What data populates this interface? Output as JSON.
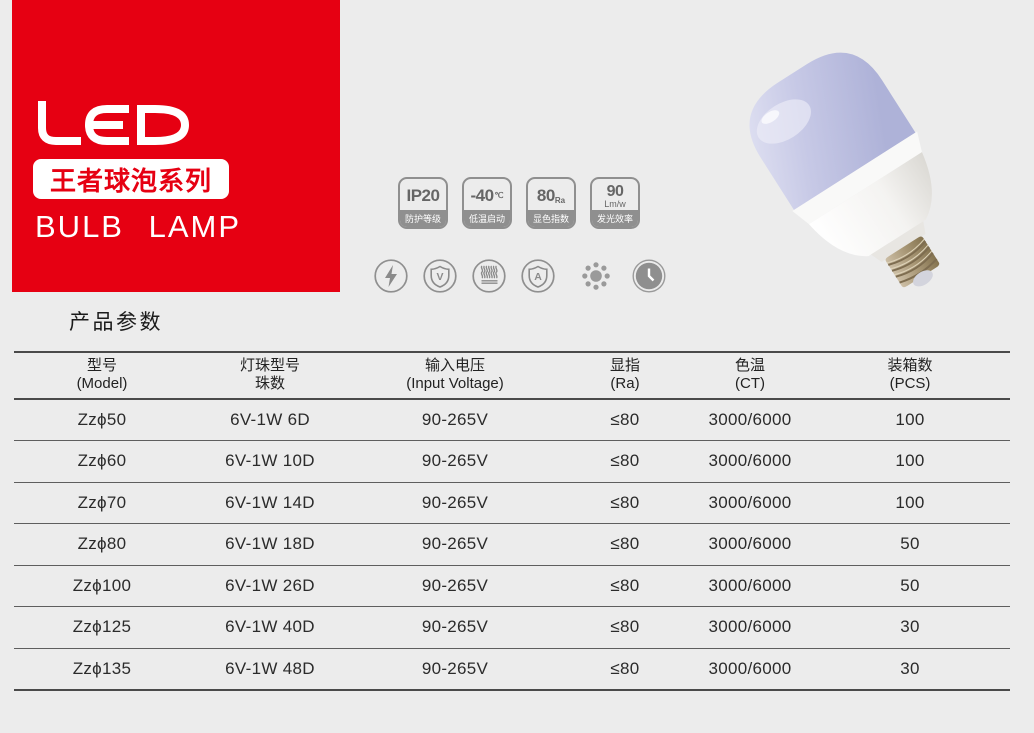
{
  "brand": {
    "logo_text": "LED",
    "series_label": "王者球泡系列",
    "product_name": "BULB LAMP"
  },
  "badges": [
    {
      "value": "IP20",
      "unit": "",
      "label": "防护等级"
    },
    {
      "value": "-40",
      "unit": "℃",
      "label": "低温启动"
    },
    {
      "value": "80",
      "unit": "Ra",
      "label": "显色指数"
    },
    {
      "value": "90",
      "unit": "Lm/w",
      "label": "发光效率"
    }
  ],
  "feature_icons": [
    {
      "name": "lightning-icon"
    },
    {
      "name": "shield-v-icon",
      "letter": "V"
    },
    {
      "name": "heat-dissipation-icon"
    },
    {
      "name": "shield-a-icon",
      "letter": "A"
    },
    {
      "name": "led-beads-icon"
    },
    {
      "name": "clock-icon"
    }
  ],
  "section_title": "产品参数",
  "table": {
    "columns": [
      {
        "line1": "型号",
        "line2": "(Model)"
      },
      {
        "line1": "灯珠型号",
        "line2": "珠数"
      },
      {
        "line1": "输入电压",
        "line2": "(Input Voltage)"
      },
      {
        "line1": "显指",
        "line2": "(Ra)"
      },
      {
        "line1": "色温",
        "line2": "(CT)"
      },
      {
        "line1": "装箱数",
        "line2": "(PCS)"
      }
    ],
    "rows": [
      [
        "Zzϕ50",
        "6V-1W 6D",
        "90-265V",
        "≤80",
        "3000/6000",
        "100"
      ],
      [
        "Zzϕ60",
        "6V-1W 10D",
        "90-265V",
        "≤80",
        "3000/6000",
        "100"
      ],
      [
        "Zzϕ70",
        "6V-1W 14D",
        "90-265V",
        "≤80",
        "3000/6000",
        "100"
      ],
      [
        "Zzϕ80",
        "6V-1W 18D",
        "90-265V",
        "≤80",
        "3000/6000",
        "50"
      ],
      [
        "Zzϕ100",
        "6V-1W 26D",
        "90-265V",
        "≤80",
        "3000/6000",
        "50"
      ],
      [
        "Zzϕ125",
        "6V-1W 40D",
        "90-265V",
        "≤80",
        "3000/6000",
        "30"
      ],
      [
        "Zzϕ135",
        "6V-1W 48D",
        "90-265V",
        "≤80",
        "3000/6000",
        "30"
      ]
    ]
  },
  "colors": {
    "brand_red": "#e60012",
    "background": "#ececec",
    "badge_gray": "#8f8f8f",
    "table_line": "#4a4a4a",
    "text_dark": "#2b2b2b",
    "bulb_dome": "#c7c9e6"
  }
}
